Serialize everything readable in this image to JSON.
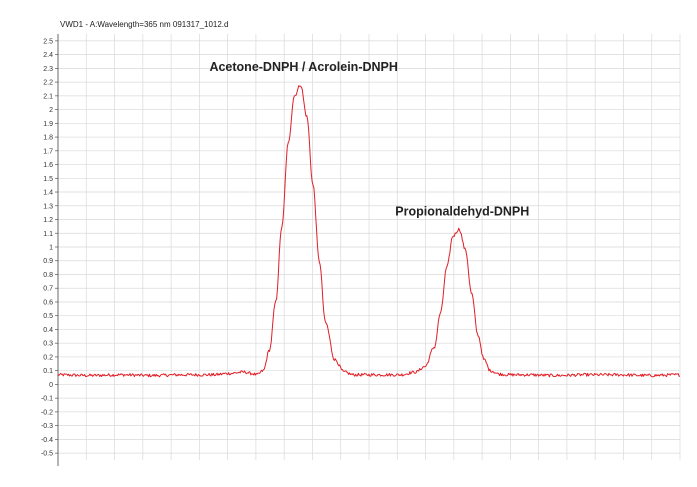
{
  "chart_data": {
    "type": "line",
    "title": "VWD1 - A:Wavelength=365 nm 091317_1012.d",
    "xlabel": "",
    "ylabel": "",
    "ylim": [
      -0.55,
      2.55
    ],
    "grid": true,
    "y_ticks": [
      "2.5",
      "2.4",
      "2.3",
      "2.2",
      "2.1",
      "2",
      "1.9",
      "1.8",
      "1.7",
      "1.6",
      "1.5",
      "1.4",
      "1.3",
      "1.2",
      "1.1",
      "1",
      "0.9",
      "0.8",
      "0.7",
      "0.6",
      "0.5",
      "0.4",
      "0.3",
      "0.2",
      "0.1",
      "0",
      "-0.1",
      "-0.2",
      "-0.3",
      "-0.4",
      "-0.5"
    ],
    "series": [
      {
        "color": "#e01e25",
        "x": [
          0,
          2,
          4,
          6,
          8,
          10,
          11,
          12,
          12.4,
          12.8,
          13.2,
          13.6,
          14.0,
          14.4,
          14.8,
          15.2,
          15.6,
          16.0,
          16.4,
          16.8,
          17.2,
          17.8,
          18.4,
          19,
          20,
          21,
          22,
          23,
          23.6,
          24.2,
          24.6,
          25.0,
          25.4,
          25.8,
          26.2,
          26.6,
          27.0,
          27.4,
          27.8,
          28.4,
          29,
          30,
          32,
          34,
          36,
          38,
          40
        ],
        "y": [
          0.07,
          0.065,
          0.07,
          0.065,
          0.07,
          0.07,
          0.08,
          0.09,
          0.08,
          0.07,
          0.1,
          0.25,
          0.6,
          1.15,
          1.75,
          2.1,
          2.18,
          1.95,
          1.45,
          0.9,
          0.45,
          0.18,
          0.09,
          0.07,
          0.07,
          0.07,
          0.07,
          0.09,
          0.13,
          0.27,
          0.52,
          0.85,
          1.08,
          1.13,
          0.98,
          0.66,
          0.36,
          0.18,
          0.1,
          0.075,
          0.07,
          0.07,
          0.065,
          0.07,
          0.07,
          0.065,
          0.07
        ]
      }
    ],
    "annotations": [
      {
        "text": "Acetone-DNPH / Acrolein-DNPH",
        "x": 15.8,
        "y": 2.28
      },
      {
        "text": "Propionaldehyd-DNPH",
        "x": 26.0,
        "y": 1.23
      }
    ],
    "xlim": [
      0,
      40
    ]
  }
}
